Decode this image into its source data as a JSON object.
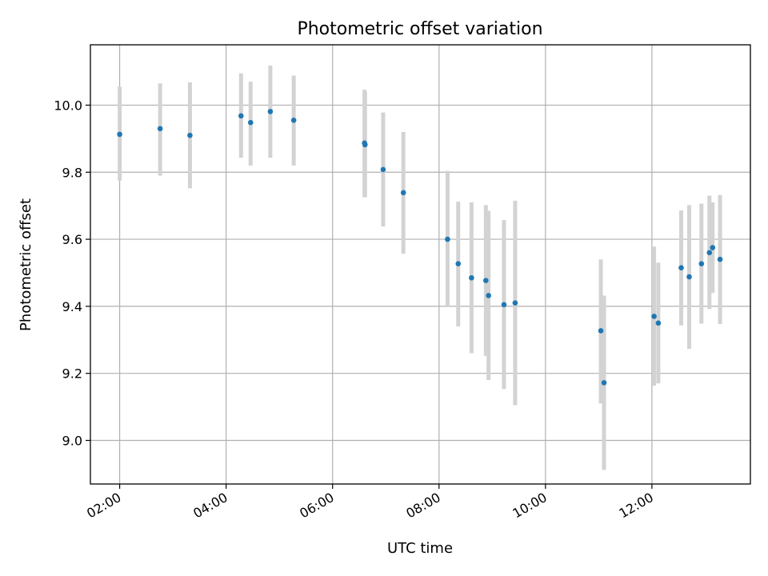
{
  "chart_data": {
    "type": "scatter",
    "title": "Photometric offset variation",
    "xlabel": "UTC time",
    "ylabel": "Photometric offset",
    "x_unit": "hours UTC",
    "xlim": [
      1.45,
      13.85
    ],
    "ylim": [
      8.87,
      10.18
    ],
    "xticks": [
      {
        "value": 2,
        "label": "02:00"
      },
      {
        "value": 4,
        "label": "04:00"
      },
      {
        "value": 6,
        "label": "06:00"
      },
      {
        "value": 8,
        "label": "08:00"
      },
      {
        "value": 10,
        "label": "10:00"
      },
      {
        "value": 12,
        "label": "12:00"
      }
    ],
    "yticks": [
      {
        "value": 9.0,
        "label": "9.0"
      },
      {
        "value": 9.2,
        "label": "9.2"
      },
      {
        "value": 9.4,
        "label": "9.4"
      },
      {
        "value": 9.6,
        "label": "9.6"
      },
      {
        "value": 9.8,
        "label": "9.8"
      },
      {
        "value": 10.0,
        "label": "10.0"
      }
    ],
    "grid": true,
    "marker_color": "#1f77b4",
    "errorbar_color": "#d3d3d3",
    "points": [
      {
        "x": 2.0,
        "y": 9.913,
        "lo": 9.775,
        "hi": 10.055
      },
      {
        "x": 2.76,
        "y": 9.93,
        "lo": 9.79,
        "hi": 10.065
      },
      {
        "x": 3.32,
        "y": 9.91,
        "lo": 9.752,
        "hi": 10.068
      },
      {
        "x": 4.28,
        "y": 9.968,
        "lo": 9.843,
        "hi": 10.095
      },
      {
        "x": 4.46,
        "y": 9.948,
        "lo": 9.82,
        "hi": 10.07
      },
      {
        "x": 4.83,
        "y": 9.981,
        "lo": 9.843,
        "hi": 10.118
      },
      {
        "x": 5.27,
        "y": 9.955,
        "lo": 9.82,
        "hi": 10.088
      },
      {
        "x": 6.6,
        "y": 9.887,
        "lo": 9.725,
        "hi": 10.046
      },
      {
        "x": 6.61,
        "y": 9.882,
        "lo": 9.725,
        "hi": 10.04
      },
      {
        "x": 6.95,
        "y": 9.808,
        "lo": 9.638,
        "hi": 9.978
      },
      {
        "x": 7.33,
        "y": 9.739,
        "lo": 9.557,
        "hi": 9.92
      },
      {
        "x": 8.16,
        "y": 9.6,
        "lo": 9.4,
        "hi": 9.804
      },
      {
        "x": 8.36,
        "y": 9.527,
        "lo": 9.34,
        "hi": 9.712
      },
      {
        "x": 8.61,
        "y": 9.485,
        "lo": 9.26,
        "hi": 9.71
      },
      {
        "x": 8.88,
        "y": 9.477,
        "lo": 9.252,
        "hi": 9.702
      },
      {
        "x": 8.93,
        "y": 9.432,
        "lo": 9.18,
        "hi": 9.685
      },
      {
        "x": 9.22,
        "y": 9.405,
        "lo": 9.153,
        "hi": 9.657
      },
      {
        "x": 9.43,
        "y": 9.41,
        "lo": 9.105,
        "hi": 9.715
      },
      {
        "x": 11.04,
        "y": 9.327,
        "lo": 9.11,
        "hi": 9.54
      },
      {
        "x": 11.1,
        "y": 9.172,
        "lo": 8.912,
        "hi": 9.432
      },
      {
        "x": 12.04,
        "y": 9.37,
        "lo": 9.163,
        "hi": 9.578
      },
      {
        "x": 12.12,
        "y": 9.35,
        "lo": 9.17,
        "hi": 9.53
      },
      {
        "x": 12.55,
        "y": 9.515,
        "lo": 9.343,
        "hi": 9.686
      },
      {
        "x": 12.7,
        "y": 9.488,
        "lo": 9.273,
        "hi": 9.702
      },
      {
        "x": 12.93,
        "y": 9.527,
        "lo": 9.348,
        "hi": 9.706
      },
      {
        "x": 13.08,
        "y": 9.56,
        "lo": 9.392,
        "hi": 9.73
      },
      {
        "x": 13.14,
        "y": 9.575,
        "lo": 9.44,
        "hi": 9.71
      },
      {
        "x": 13.28,
        "y": 9.54,
        "lo": 9.347,
        "hi": 9.732
      }
    ]
  }
}
